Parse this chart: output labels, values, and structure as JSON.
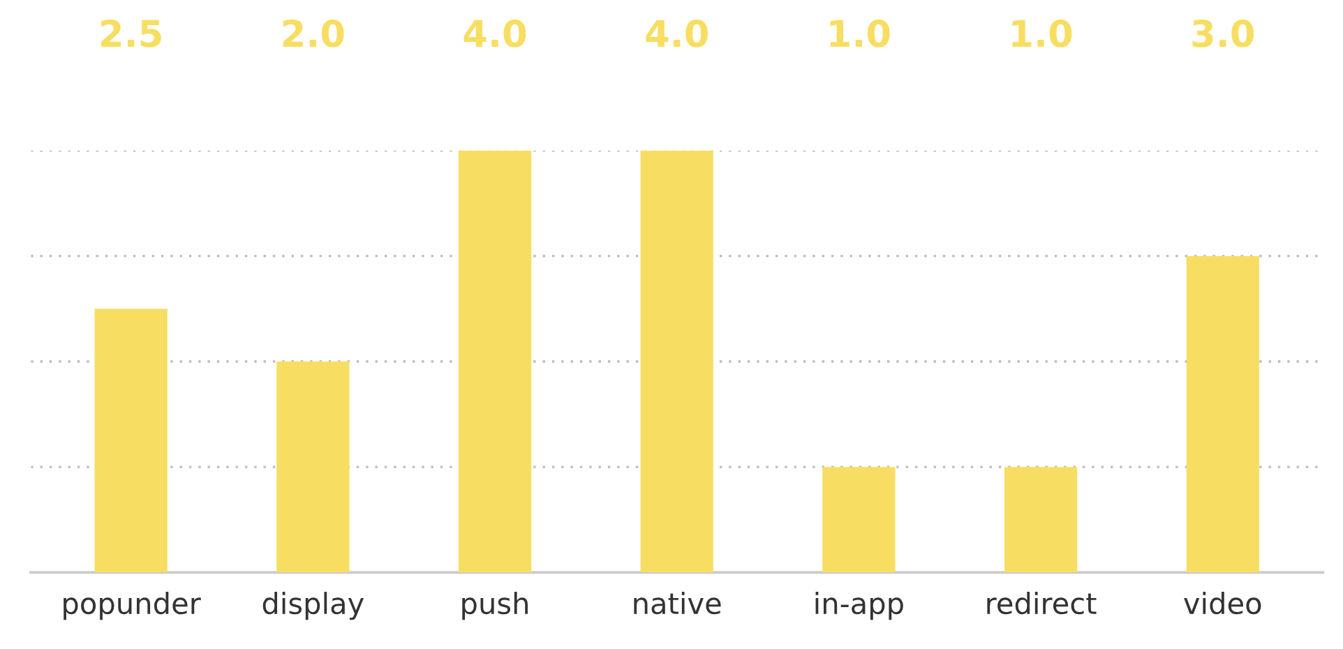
{
  "chart_data": {
    "type": "bar",
    "categories": [
      "popunder",
      "display",
      "push",
      "native",
      "in-app",
      "redirect",
      "video"
    ],
    "values": [
      2.5,
      2.0,
      4.0,
      4.0,
      1.0,
      1.0,
      3.0
    ],
    "value_labels": [
      "2.5",
      "2.0",
      "4.0",
      "4.0",
      "1.0",
      "1.0",
      "3.0"
    ],
    "color": "#f7de62",
    "ylim": [
      0,
      4
    ],
    "yticks": [
      {
        "value": 1,
        "label": null
      },
      {
        "value": 2,
        "label": null
      },
      {
        "value": 3,
        "label": null
      },
      {
        "value": 4,
        "label": null
      }
    ],
    "grid": "y",
    "tick_labels": "x",
    "legend": false
  }
}
